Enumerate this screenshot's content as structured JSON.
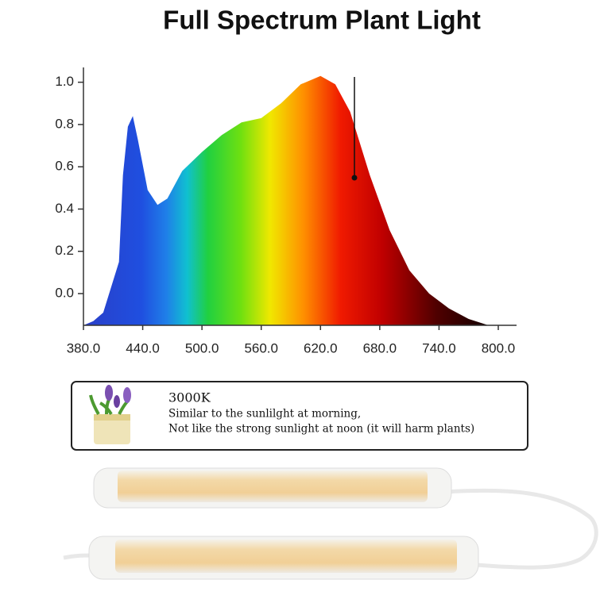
{
  "chart_data": {
    "type": "area",
    "title": "Full Spectrum Plant Light",
    "x": [
      380,
      390,
      400,
      416,
      420,
      425,
      430,
      435,
      445,
      455,
      465,
      480,
      500,
      520,
      540,
      560,
      580,
      600,
      620,
      635,
      650,
      670,
      690,
      710,
      730,
      750,
      770,
      790,
      800
    ],
    "values": [
      -0.15,
      -0.13,
      -0.09,
      0.15,
      0.56,
      0.79,
      0.84,
      0.73,
      0.49,
      0.42,
      0.45,
      0.58,
      0.67,
      0.75,
      0.81,
      0.83,
      0.9,
      0.99,
      1.03,
      0.99,
      0.86,
      0.56,
      0.3,
      0.11,
      0.0,
      -0.07,
      -0.12,
      -0.15,
      -0.15
    ],
    "xlim": [
      380,
      800
    ],
    "ylim": [
      -0.15,
      1.07
    ],
    "xticks": [
      {
        "value": 380,
        "label": "380.0"
      },
      {
        "value": 440,
        "label": "440.0"
      },
      {
        "value": 500,
        "label": "500.0"
      },
      {
        "value": 560,
        "label": "560.0"
      },
      {
        "value": 620,
        "label": "620.0"
      },
      {
        "value": 680,
        "label": "680.0"
      },
      {
        "value": 740,
        "label": "740.0"
      },
      {
        "value": 800,
        "label": "800.0"
      }
    ],
    "yticks": [
      {
        "value": 0,
        "label": "0.0"
      },
      {
        "value": 0.2,
        "label": "0.2"
      },
      {
        "value": 0.4,
        "label": "0.4"
      },
      {
        "value": 0.6,
        "label": "0.6"
      },
      {
        "value": 0.8,
        "label": "0.8"
      },
      {
        "value": 1,
        "label": "1.0"
      }
    ]
  },
  "info_box": {
    "title": "3000K",
    "lines": [
      "Similar to the sunlilght at morning,",
      "Not like the strong sunlight at noon (it will harm plants)"
    ]
  }
}
